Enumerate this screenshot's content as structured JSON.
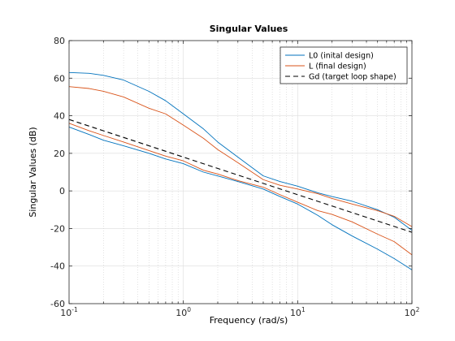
{
  "chart_data": {
    "type": "line",
    "title": "Singular Values",
    "xlabel": "Frequency (rad/s)",
    "ylabel": "Singular Values (dB)",
    "xscale": "log",
    "xlim": [
      0.1,
      100
    ],
    "ylim": [
      -60,
      80
    ],
    "yticks": [
      -60,
      -40,
      -20,
      0,
      20,
      40,
      60,
      80
    ],
    "xtick_labels": [
      {
        "base": "10",
        "exp": "-1"
      },
      {
        "base": "10",
        "exp": "0"
      },
      {
        "base": "10",
        "exp": "1"
      },
      {
        "base": "10",
        "exp": "2"
      }
    ],
    "grid": true,
    "legend_position": "top-right",
    "series": [
      {
        "name": "L0 (inital design)",
        "color": "#0072BD",
        "dash": "solid",
        "x": [
          0.1,
          0.15,
          0.2,
          0.3,
          0.5,
          0.7,
          1.0,
          1.5,
          2.0,
          3.0,
          5.0,
          7.0,
          10,
          15,
          20,
          30,
          50,
          70,
          100
        ],
        "y": [
          63,
          62.6,
          61.5,
          59,
          53,
          48,
          41,
          33,
          26,
          18,
          8,
          5,
          2.5,
          -1,
          -3,
          -5.5,
          -10,
          -14,
          -21
        ]
      },
      {
        "name": "L0 (inital design)",
        "color": "#0072BD",
        "dash": "solid",
        "x": [
          0.1,
          0.15,
          0.2,
          0.3,
          0.5,
          0.7,
          1.0,
          1.5,
          2.0,
          3.0,
          5.0,
          7.0,
          10,
          15,
          20,
          30,
          50,
          70,
          100
        ],
        "y": [
          34,
          30,
          27,
          24,
          20,
          17,
          14.5,
          10,
          8,
          5,
          1,
          -3,
          -7,
          -13,
          -18,
          -24,
          -31,
          -36,
          -42
        ]
      },
      {
        "name": "L (final design)",
        "color": "#D95319",
        "dash": "solid",
        "x": [
          0.1,
          0.15,
          0.2,
          0.3,
          0.5,
          0.7,
          1.0,
          1.5,
          2.0,
          3.0,
          5.0,
          7.0,
          10,
          15,
          20,
          30,
          50,
          70,
          100
        ],
        "y": [
          55.5,
          54.5,
          53,
          50,
          44,
          41,
          35,
          28,
          22,
          15,
          6,
          3,
          1,
          -1.5,
          -4,
          -7,
          -10.5,
          -13.5,
          -19
        ]
      },
      {
        "name": "L (final design)",
        "color": "#D95319",
        "dash": "solid",
        "x": [
          0.1,
          0.15,
          0.2,
          0.3,
          0.5,
          0.7,
          1.0,
          1.5,
          2.0,
          3.0,
          5.0,
          7.0,
          10,
          15,
          20,
          30,
          50,
          70,
          100
        ],
        "y": [
          36,
          32,
          29.5,
          26,
          21.5,
          18.5,
          16,
          11,
          9,
          5.5,
          2,
          -2,
          -6,
          -10.5,
          -12.5,
          -16.5,
          -23,
          -27,
          -34
        ]
      },
      {
        "name": "Gd (target loop shape)",
        "color": "#000000",
        "dash": "dashed",
        "x": [
          0.1,
          100
        ],
        "y": [
          38,
          -22
        ]
      }
    ]
  }
}
